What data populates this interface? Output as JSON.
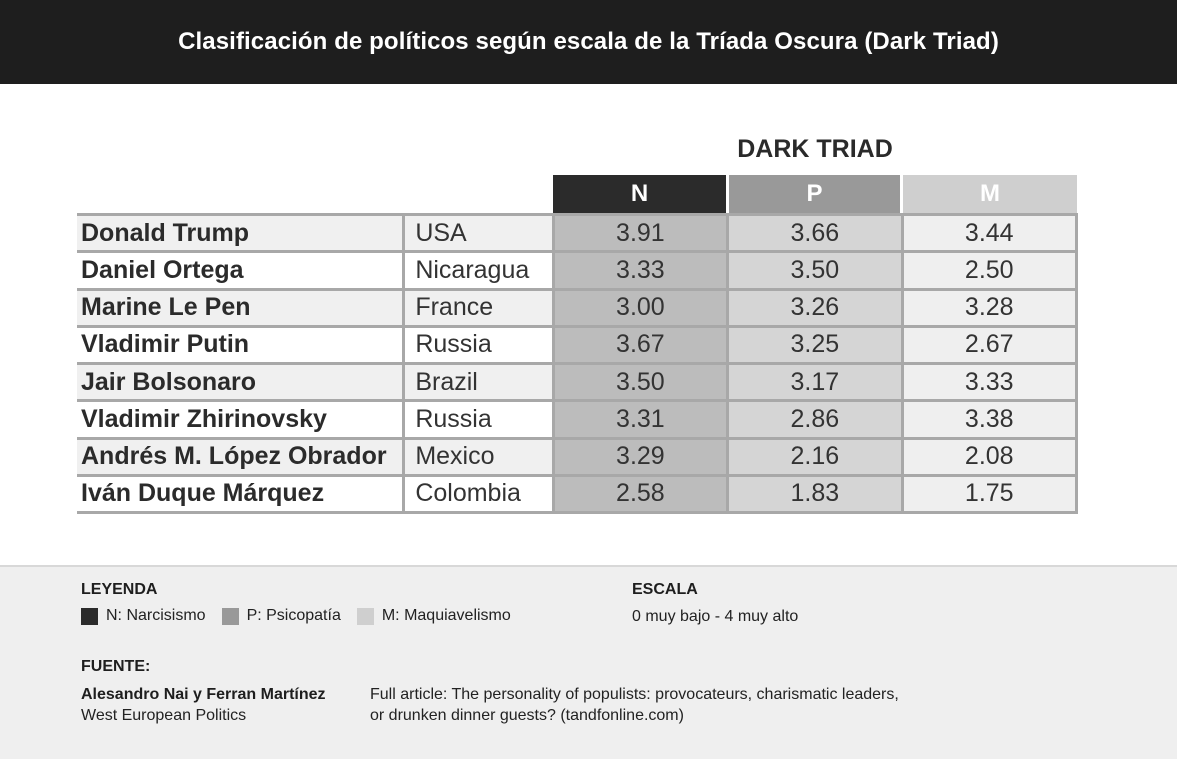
{
  "header": {
    "title": "Clasificación de políticos según escala de la Tríada Oscura (Dark Triad)"
  },
  "chart_data": {
    "type": "table",
    "group_label": "DARK TRIAD",
    "columns": [
      "N",
      "P",
      "M"
    ],
    "rows": [
      {
        "name": "Donald Trump",
        "country": "USA",
        "N": "3.91",
        "P": "3.66",
        "M": "3.44"
      },
      {
        "name": "Daniel Ortega",
        "country": "Nicaragua",
        "N": "3.33",
        "P": "3.50",
        "M": "2.50"
      },
      {
        "name": "Marine Le Pen",
        "country": "France",
        "N": "3.00",
        "P": "3.26",
        "M": "3.28"
      },
      {
        "name": "Vladimir Putin",
        "country": "Russia",
        "N": "3.67",
        "P": "3.25",
        "M": "2.67"
      },
      {
        "name": "Jair Bolsonaro",
        "country": "Brazil",
        "N": "3.50",
        "P": "3.17",
        "M": "3.33"
      },
      {
        "name": "Vladimir Zhirinovsky",
        "country": "Russia",
        "N": "3.31",
        "P": "2.86",
        "M": "3.38"
      },
      {
        "name": "Andrés M. López Obrador",
        "country": "Mexico",
        "N": "3.29",
        "P": "2.16",
        "M": "2.08"
      },
      {
        "name": "Iván Duque Márquez",
        "country": "Colombia",
        "N": "2.58",
        "P": "1.83",
        "M": "1.75"
      }
    ]
  },
  "legend": {
    "title": "LEYENDA",
    "items": [
      {
        "label": "N: Narcisismo",
        "color": "#2b2b2b"
      },
      {
        "label": "P: Psicopatía",
        "color": "#999999"
      },
      {
        "label": "M: Maquiavelismo",
        "color": "#cfcfcf"
      }
    ]
  },
  "scale": {
    "title": "ESCALA",
    "text": "0 muy bajo - 4 muy alto"
  },
  "source": {
    "title": "FUENTE:",
    "authors": "Alesandro Nai y Ferran Martínez",
    "journal": "West European Politics",
    "article_line1": "Full article: The personality of populists: provocateurs, charismatic leaders,",
    "article_line2": "or drunken dinner guests? (tandfonline.com)"
  }
}
